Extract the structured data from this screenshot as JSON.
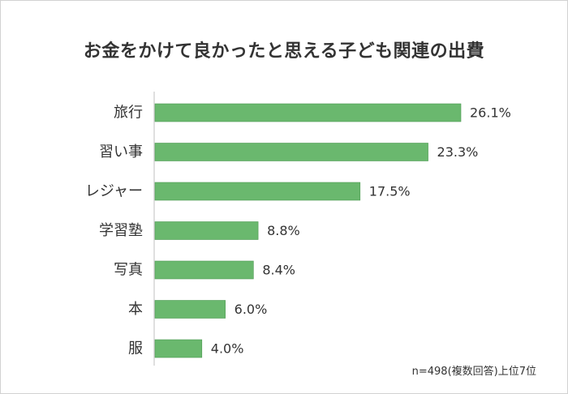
{
  "chart_data": {
    "type": "bar",
    "orientation": "horizontal",
    "title": "お金をかけて良かったと思える子ども関連の出費",
    "categories": [
      "旅行",
      "習い事",
      "レジャー",
      "学習塾",
      "写真",
      "本",
      "服"
    ],
    "values": [
      26.1,
      23.3,
      17.5,
      8.8,
      8.4,
      6.0,
      4.0
    ],
    "value_labels": [
      "26.1%",
      "23.3%",
      "17.5%",
      "8.8%",
      "8.4%",
      "6.0%",
      "4.0%"
    ],
    "xlim": [
      0,
      26.1
    ],
    "grid": false,
    "bar_color": "#6ab86e",
    "bar_edge_color": "#4e9a53",
    "axis_color": "#bfbfbf",
    "note": "n=498(複数回答)上位7位"
  }
}
